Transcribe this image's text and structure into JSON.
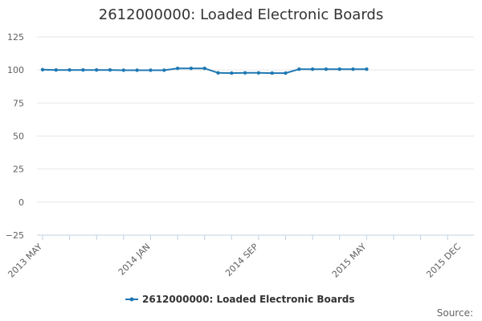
{
  "chart_data": {
    "type": "line",
    "title": "2612000000: Loaded Electronic Boards",
    "xlabel": "",
    "ylabel": "",
    "ylim": [
      -25,
      125
    ],
    "yticks": [
      "125",
      "100",
      "75",
      "50",
      "25",
      "0",
      "−25"
    ],
    "x_tick_labels": [
      "2013 MAY",
      "2014 JAN",
      "2014 SEP",
      "2015 MAY",
      "2015 DEC"
    ],
    "x_tick_positions": [
      "2013-05",
      "2014-01",
      "2014-09",
      "2015-05",
      "2015-12"
    ],
    "x_range": [
      "2013-05",
      "2015-12"
    ],
    "grid": true,
    "legend_position": "bottom-center",
    "series": [
      {
        "name": "2612000000: Loaded Electronic Boards",
        "color": "#1f78b4",
        "x": [
          "2013-05",
          "2013-06",
          "2013-07",
          "2013-08",
          "2013-09",
          "2013-10",
          "2013-11",
          "2013-12",
          "2014-01",
          "2014-02",
          "2014-03",
          "2014-04",
          "2014-05",
          "2014-06",
          "2014-07",
          "2014-08",
          "2014-09",
          "2014-10",
          "2014-11",
          "2014-12",
          "2015-01",
          "2015-02",
          "2015-03",
          "2015-04",
          "2015-05"
        ],
        "values": [
          100.2,
          100.0,
          100.0,
          100.0,
          100.0,
          100.0,
          99.8,
          99.8,
          99.8,
          99.8,
          101.2,
          101.2,
          101.2,
          97.8,
          97.6,
          97.8,
          97.8,
          97.6,
          97.6,
          100.6,
          100.6,
          100.6,
          100.6,
          100.6,
          100.6
        ]
      }
    ]
  },
  "source_label": "Source:"
}
